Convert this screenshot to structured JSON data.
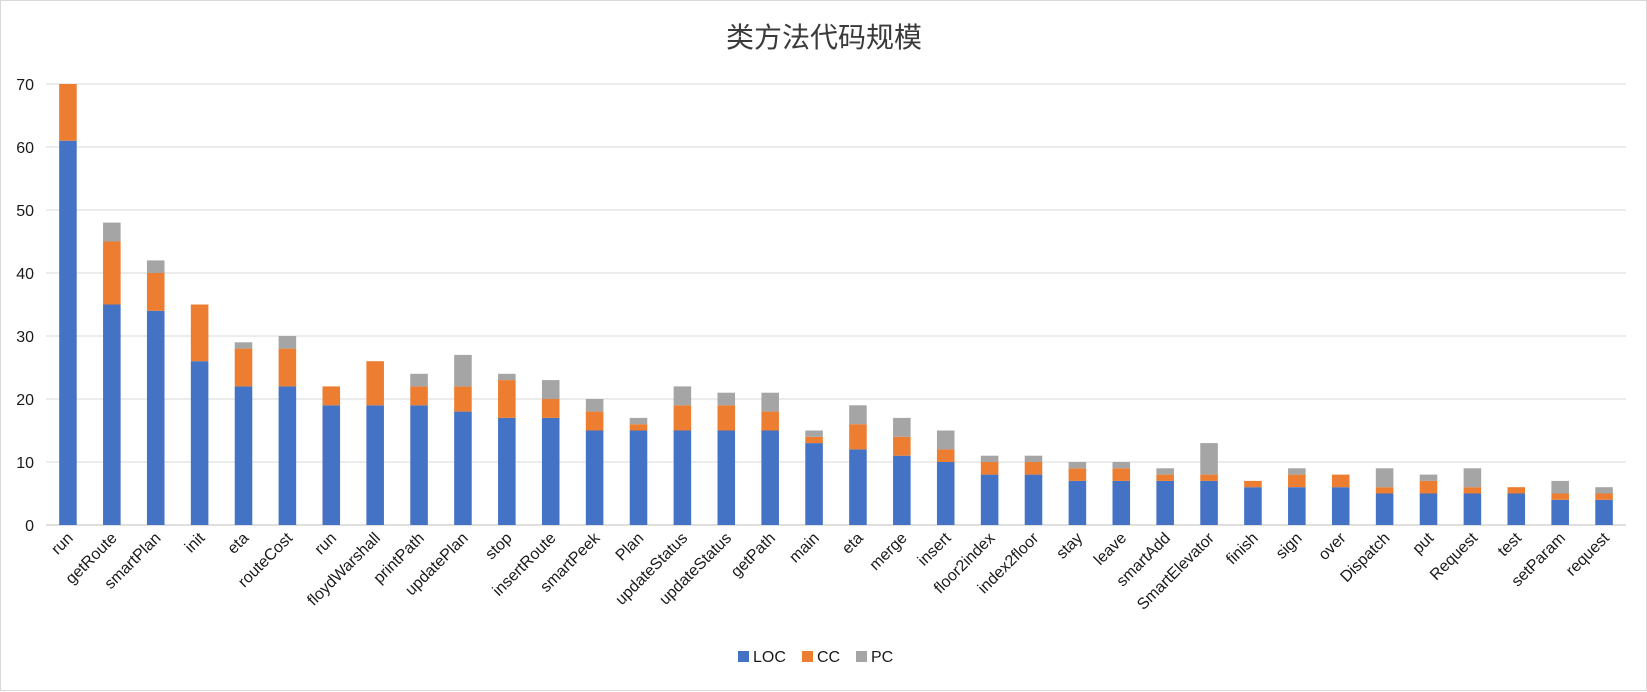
{
  "chart_data": {
    "type": "bar",
    "stacked": true,
    "title": "类方法代码规模",
    "xlabel": "",
    "ylabel": "",
    "ylim": [
      0,
      70
    ],
    "yticks": [
      0,
      10,
      20,
      30,
      40,
      50,
      60,
      70
    ],
    "grid": true,
    "legend_position": "bottom",
    "categories": [
      "run",
      "getRoute",
      "smartPlan",
      "init",
      "eta",
      "routeCost",
      "run",
      "floydWarshall",
      "printPath",
      "updatePlan",
      "stop",
      "insertRoute",
      "smartPeek",
      "Plan",
      "updateStatus",
      "updateStatus",
      "getPath",
      "main",
      "eta",
      "merge",
      "insert",
      "floor2index",
      "index2floor",
      "stay",
      "leave",
      "smartAdd",
      "SmartElevator",
      "finish",
      "sign",
      "over",
      "Dispatch",
      "put",
      "Request",
      "test",
      "setParam",
      "request"
    ],
    "series": [
      {
        "name": "LOC",
        "color": "#4472c4",
        "values": [
          61,
          35,
          34,
          26,
          22,
          22,
          19,
          19,
          19,
          18,
          17,
          17,
          15,
          15,
          15,
          15,
          15,
          13,
          12,
          11,
          10,
          8,
          8,
          7,
          7,
          7,
          7,
          6,
          6,
          6,
          5,
          5,
          5,
          5,
          4,
          4
        ]
      },
      {
        "name": "CC",
        "color": "#ed7d31",
        "values": [
          9,
          10,
          6,
          9,
          6,
          6,
          3,
          7,
          3,
          4,
          6,
          3,
          3,
          1,
          4,
          4,
          3,
          1,
          4,
          3,
          2,
          2,
          2,
          2,
          2,
          1,
          1,
          1,
          2,
          2,
          1,
          2,
          1,
          1,
          1,
          1
        ]
      },
      {
        "name": "PC",
        "color": "#a5a5a5",
        "values": [
          0,
          3,
          2,
          0,
          1,
          2,
          0,
          0,
          2,
          5,
          1,
          3,
          2,
          1,
          3,
          2,
          3,
          1,
          3,
          3,
          3,
          1,
          1,
          1,
          1,
          1,
          5,
          0,
          1,
          0,
          3,
          1,
          3,
          0,
          2,
          1
        ]
      }
    ]
  }
}
